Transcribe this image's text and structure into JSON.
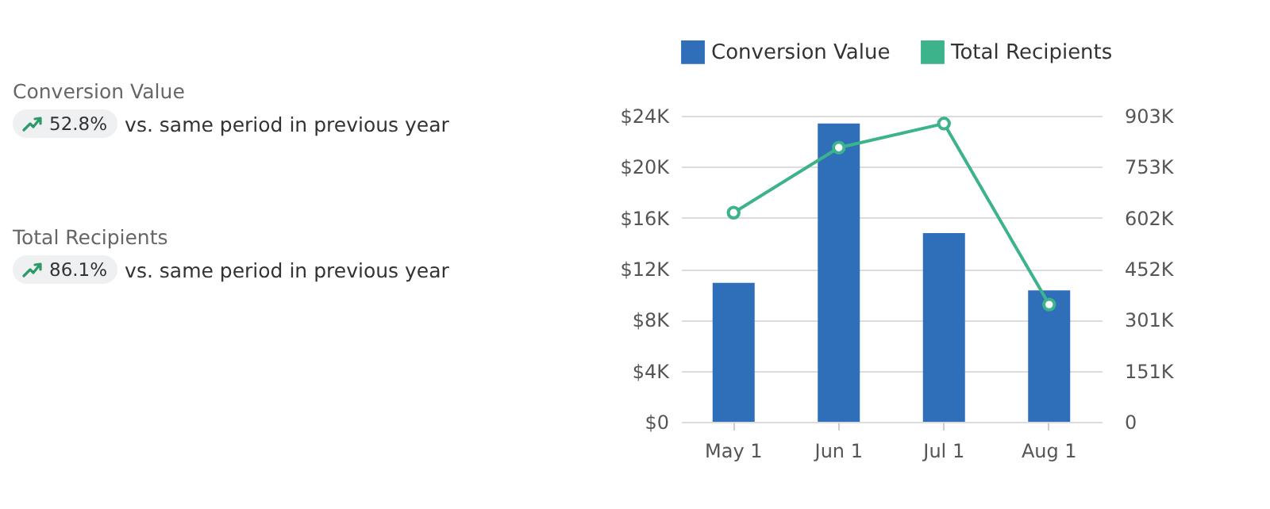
{
  "chart_data": [
    {
      "type": "other",
      "annotations": [
        "Conversion Value",
        "52.8%",
        "vs. same period in previous year",
        "Total Recipients",
        "86.1%",
        "vs. same period in previous year"
      ]
    },
    {
      "type": "bar",
      "categories": [
        "May 1",
        "Jun 1",
        "Jul 1",
        "Aug 1"
      ],
      "series": [
        {
          "name": "Conversion Value",
          "color": "#2f6fba",
          "values": [
            10900,
            23400,
            14800,
            10300
          ]
        },
        {
          "name": "Total Recipients",
          "type": "line",
          "axis": "y2",
          "color": "#3cb38a",
          "values": [
            617000,
            809000,
            880000,
            346000
          ]
        }
      ],
      "ylim": [
        0,
        24000
      ],
      "yticks": [
        {
          "value": 0,
          "label": "$0"
        },
        {
          "value": 4000,
          "label": "$4K"
        },
        {
          "value": 8000,
          "label": "$8K"
        },
        {
          "value": 12000,
          "label": "$12K"
        },
        {
          "value": 16000,
          "label": "$16K"
        },
        {
          "value": 20000,
          "label": "$20K"
        },
        {
          "value": 24000,
          "label": "$24K"
        }
      ],
      "y2lim": [
        0,
        903000
      ],
      "y2ticks": [
        0,
        {
          "value": 150500,
          "label": "151K"
        },
        {
          "value": 301000,
          "label": "301K"
        },
        {
          "value": 451500,
          "label": "452K"
        },
        {
          "value": 602000,
          "label": "602K"
        },
        {
          "value": 752500,
          "label": "753K"
        },
        {
          "value": 903000,
          "label": "903K"
        }
      ],
      "grid": "y",
      "legend": "top",
      "marker": "circle"
    }
  ]
}
